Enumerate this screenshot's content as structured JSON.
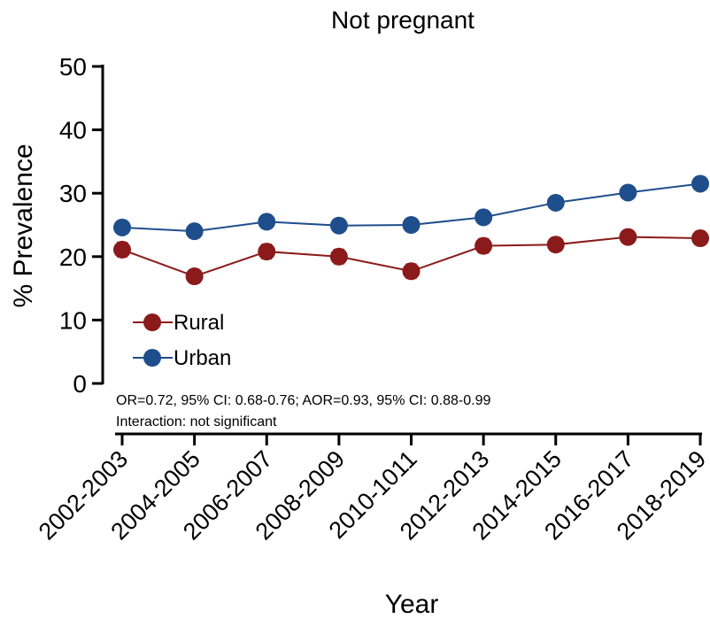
{
  "chart_data": {
    "type": "line",
    "title": "Not pregnant",
    "x_label": "Year",
    "y_label": "% Prevalence",
    "categories": [
      "2002-2003",
      "2004-2005",
      "2006-2007",
      "2008-2009",
      "2010-1011",
      "2012-2013",
      "2014-2015",
      "2016-2017",
      "2018-2019"
    ],
    "series": [
      {
        "name": "Rural",
        "color": "#8b1a1a",
        "values": [
          21.1,
          16.9,
          20.8,
          20.0,
          17.7,
          21.7,
          21.9,
          23.1,
          22.9
        ],
        "errors": [
          1.1,
          1.0,
          1.1,
          1.1,
          1.1,
          1.1,
          1.0,
          1.0,
          1.0
        ]
      },
      {
        "name": "Urban",
        "color": "#1f4e8c",
        "values": [
          24.6,
          24.0,
          25.5,
          24.9,
          25.0,
          26.2,
          28.5,
          30.1,
          31.5
        ],
        "errors": [
          0.6,
          0.6,
          0.6,
          0.6,
          0.6,
          0.6,
          0.6,
          0.6,
          0.6
        ]
      }
    ],
    "ylim": [
      0,
      50
    ],
    "yticks": [
      0,
      10,
      20,
      30,
      40,
      50
    ],
    "annotations": [
      "OR=0.72, 95% CI: 0.68-0.76; AOR=0.93, 95% CI: 0.88-0.99",
      "Interaction: not significant"
    ],
    "legend": "lower left"
  }
}
